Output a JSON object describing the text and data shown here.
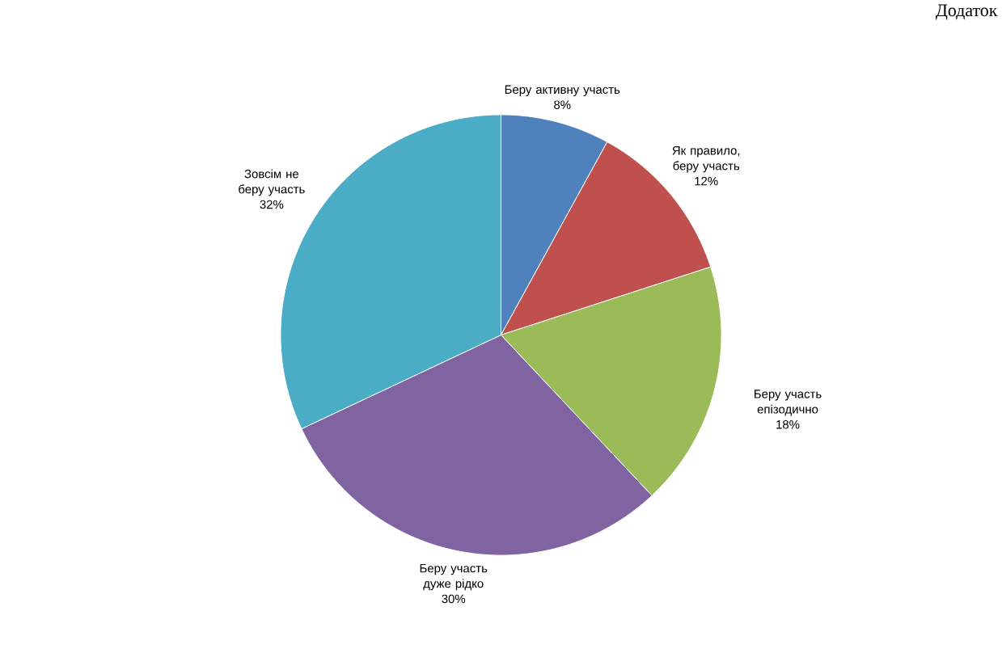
{
  "chart_data": {
    "type": "pie",
    "categories": [
      "Беру активну участь",
      "Як правило, беру участь",
      "Беру участь епізодично",
      "Беру участь дуже рідко",
      "Зовсім не беру участь"
    ],
    "values": [
      8,
      12,
      18,
      30,
      32
    ],
    "value_labels": [
      "8%",
      "12%",
      "18%",
      "30%",
      "32%"
    ],
    "colors": [
      "#4f81bd",
      "#c0504d",
      "#9bbb59",
      "#8064a2",
      "#4bacc6"
    ],
    "data_labels": true,
    "annotations": [
      "Додаток"
    ]
  }
}
